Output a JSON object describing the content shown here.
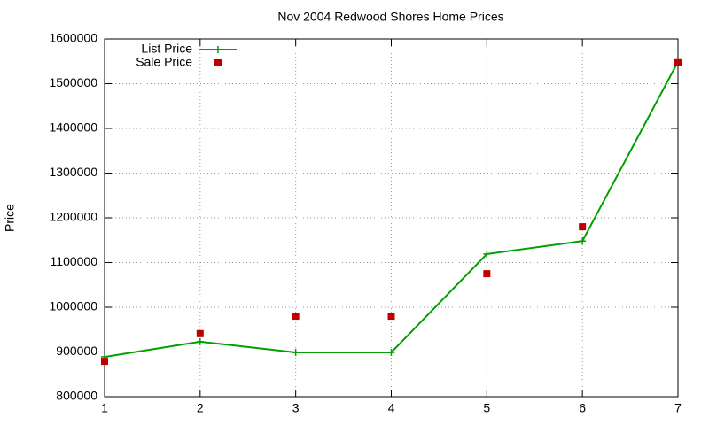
{
  "chart_data": {
    "type": "line",
    "title": "Nov 2004 Redwood Shores Home Prices",
    "y_label": "Price",
    "x": [
      1,
      2,
      3,
      4,
      5,
      6,
      7
    ],
    "series": [
      {
        "name": "List Price",
        "color": "#00a000",
        "style": "linespoints",
        "values": [
          889000,
          923000,
          899000,
          899000,
          1119000,
          1148000,
          1549000
        ]
      },
      {
        "name": "Sale Price",
        "color": "#c00000",
        "style": "points",
        "values": [
          879000,
          941000,
          980000,
          980000,
          1075000,
          1180000,
          1547000
        ]
      }
    ],
    "xlim": [
      1,
      7
    ],
    "xticks": [
      1,
      2,
      3,
      4,
      5,
      6,
      7
    ],
    "ylim": [
      800000,
      1600000
    ],
    "yticks": [
      800000,
      900000,
      1000000,
      1100000,
      1200000,
      1300000,
      1400000,
      1500000,
      1600000
    ],
    "grid": true,
    "legend": "top-left"
  }
}
